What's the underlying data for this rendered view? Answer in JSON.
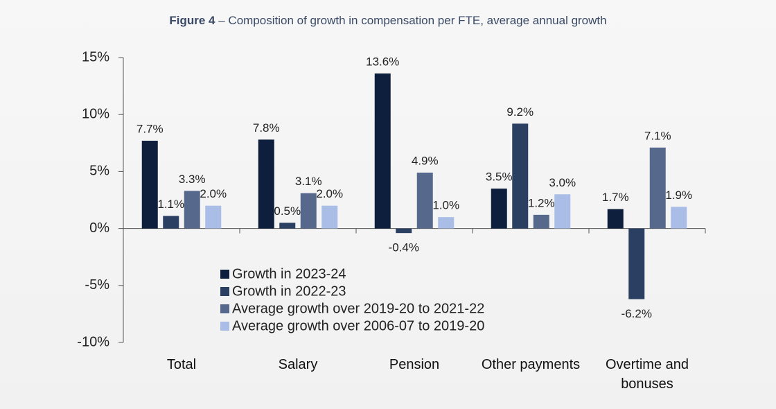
{
  "chart_data": {
    "type": "bar",
    "figure_label": "Figure 4",
    "title": "– Composition of growth in compensation per FTE, average annual growth",
    "categories": [
      "Total",
      "Salary",
      "Pension",
      "Other payments",
      "Overtime and bonuses"
    ],
    "series": [
      {
        "name": "Growth in 2023-24",
        "color": "#0d1f3c",
        "values": [
          7.7,
          7.8,
          13.6,
          3.5,
          1.7
        ],
        "value_labels": [
          "7.7%",
          "7.8%",
          "13.6%",
          "3.5%",
          "1.7%"
        ]
      },
      {
        "name": "Growth in 2022-23",
        "color": "#2b3f63",
        "values": [
          1.1,
          0.5,
          -0.4,
          9.2,
          -6.2
        ],
        "value_labels": [
          "1.1%",
          "0.5%",
          "-0.4%",
          "9.2%",
          "-6.2%"
        ]
      },
      {
        "name": "Average growth over 2019-20 to 2021-22",
        "color": "#56698d",
        "values": [
          3.3,
          3.1,
          4.9,
          1.2,
          7.1
        ],
        "value_labels": [
          "3.3%",
          "3.1%",
          "4.9%",
          "1.2%",
          "7.1%"
        ]
      },
      {
        "name": "Average growth over 2006-07 to 2019-20",
        "color": "#a9bde6",
        "values": [
          2.0,
          2.0,
          1.0,
          3.0,
          1.9
        ],
        "value_labels": [
          "2.0%",
          "2.0%",
          "1.0%",
          "3.0%",
          "1.9%"
        ]
      }
    ],
    "ylim": [
      -10,
      15
    ],
    "yticks": [
      {
        "value": -10,
        "label": "-10%"
      },
      {
        "value": -5,
        "label": "-5%"
      },
      {
        "value": 0,
        "label": "0%"
      },
      {
        "value": 5,
        "label": "5%"
      },
      {
        "value": 10,
        "label": "10%"
      },
      {
        "value": 15,
        "label": "15%"
      }
    ],
    "grid": false,
    "legend": "lower left"
  }
}
